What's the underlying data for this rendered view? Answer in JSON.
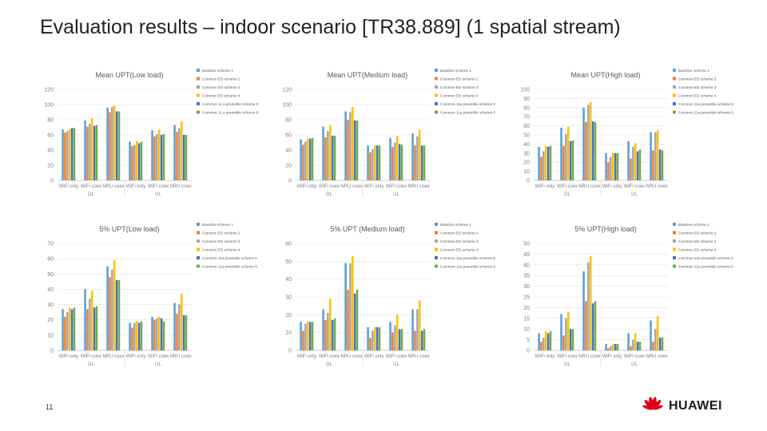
{
  "page": {
    "title": "Evaluation results – indoor scenario [TR38.889] (1 spatial stream)",
    "page_number": "11",
    "logo_text": "HUAWEI"
  },
  "colors": {
    "series": [
      "#5b9bd5",
      "#ed7d31",
      "#a5a5a5",
      "#ffc000",
      "#4472c4",
      "#70ad47"
    ]
  },
  "chart_data": [
    {
      "type": "bar",
      "title": "Mean UPT(Low load)",
      "categories": [
        "WiFi only",
        "WiFi coex",
        "NRU coex",
        "WiFi only",
        "WiFi coex",
        "NRU coex"
      ],
      "groups": [
        {
          "label": "DL",
          "span": [
            0,
            2
          ]
        },
        {
          "label": "UL",
          "span": [
            3,
            5
          ]
        }
      ],
      "legend": [
        "Baseline scheme 1",
        "Common ED scheme 2",
        "Common ED scheme 3",
        "Common ED scheme 4",
        "Common 11 a preamble scheme 5",
        "Common 11 a preamble scheme 6"
      ],
      "ylim": [
        0,
        120
      ],
      "yticks": [
        0,
        20,
        40,
        60,
        80,
        100,
        120
      ],
      "series": [
        {
          "values": [
            67,
            79,
            96,
            51,
            66,
            73
          ]
        },
        {
          "values": [
            63,
            71,
            90,
            45,
            58,
            64
          ]
        },
        {
          "values": [
            65,
            75,
            97,
            47,
            61,
            69
          ]
        },
        {
          "values": [
            68,
            82,
            99,
            52,
            67,
            78
          ]
        },
        {
          "values": [
            69,
            72,
            91,
            49,
            60,
            60
          ]
        },
        {
          "values": [
            69,
            73,
            91,
            51,
            61,
            60
          ]
        }
      ]
    },
    {
      "type": "bar",
      "title": "Mean UPT(Medium load)",
      "categories": [
        "WiFi only",
        "WiFi coex",
        "NRU coex",
        "WiFi only",
        "WiFi coex",
        "NRU coex"
      ],
      "groups": [
        {
          "label": "DL",
          "span": [
            0,
            2
          ]
        },
        {
          "label": "UL",
          "span": [
            3,
            5
          ]
        }
      ],
      "legend": [
        "Baseline scheme 1",
        "Common ED scheme 2",
        "Common ED scheme 3",
        "Common ED scheme 4",
        "Common 11a preamble scheme 5",
        "Common 11a preamble scheme 6"
      ],
      "ylim": [
        0,
        120
      ],
      "yticks": [
        0,
        20,
        40,
        60,
        80,
        100,
        120
      ],
      "series": [
        {
          "values": [
            54,
            71,
            91,
            46,
            56,
            62
          ]
        },
        {
          "values": [
            47,
            57,
            80,
            37,
            44,
            46
          ]
        },
        {
          "values": [
            51,
            65,
            90,
            41,
            50,
            58
          ]
        },
        {
          "values": [
            55,
            73,
            97,
            46,
            59,
            67
          ]
        },
        {
          "values": [
            55,
            59,
            79,
            46,
            48,
            46
          ]
        },
        {
          "values": [
            56,
            59,
            79,
            46,
            47,
            46
          ]
        }
      ]
    },
    {
      "type": "bar",
      "title": "Mean UPT(High load)",
      "categories": [
        "WiFi only",
        "WiFi coex",
        "NRU coex",
        "WiFi only",
        "WiFi coex",
        "NRU coex"
      ],
      "groups": [
        {
          "label": "DL",
          "span": [
            0,
            2
          ]
        },
        {
          "label": "UL",
          "span": [
            3,
            5
          ]
        }
      ],
      "legend": [
        "Baseline scheme 1",
        "Common ED scheme 2",
        "Common ED scheme 3",
        "Common ED scheme 4",
        "Common 11a preamble scheme 5",
        "Common 11a preamble scheme 6"
      ],
      "ylim": [
        0,
        100
      ],
      "yticks": [
        0,
        10,
        20,
        30,
        40,
        50,
        60,
        70,
        80,
        90,
        100
      ],
      "series": [
        {
          "values": [
            37,
            58,
            80,
            30,
            43,
            53
          ]
        },
        {
          "values": [
            26,
            38,
            64,
            20,
            24,
            33
          ]
        },
        {
          "values": [
            32,
            51,
            83,
            26,
            37,
            53
          ]
        },
        {
          "values": [
            38,
            59,
            86,
            30,
            41,
            55
          ]
        },
        {
          "values": [
            37,
            43,
            65,
            30,
            32,
            34
          ]
        },
        {
          "values": [
            38,
            44,
            64,
            30,
            34,
            33
          ]
        }
      ]
    },
    {
      "type": "bar",
      "title": "5% UPT(Low load)",
      "categories": [
        "WiFi only",
        "WiFi coex",
        "NRU coex",
        "WiFi only",
        "WiFi coex",
        "NRU coex"
      ],
      "groups": [
        {
          "label": "DL",
          "span": [
            0,
            2
          ]
        },
        {
          "label": "UL",
          "span": [
            3,
            5
          ]
        }
      ],
      "legend": [
        "Baseline scheme 1",
        "Common ED scheme 2",
        "Common ED scheme 3",
        "Common ED scheme 4",
        "Common 11a preamble scheme 5",
        "Common 11a preamble scheme 6"
      ],
      "ylim": [
        0,
        70
      ],
      "yticks": [
        0,
        10,
        20,
        30,
        40,
        50,
        60,
        70
      ],
      "series": [
        {
          "values": [
            27,
            40,
            55,
            18,
            22,
            31
          ]
        },
        {
          "values": [
            22,
            27,
            48,
            15,
            20,
            24
          ]
        },
        {
          "values": [
            25,
            34,
            53,
            18,
            21,
            30
          ]
        },
        {
          "values": [
            28,
            39,
            59,
            19,
            22,
            37
          ]
        },
        {
          "values": [
            27,
            28,
            46,
            18,
            21,
            23
          ]
        },
        {
          "values": [
            28,
            29,
            46,
            19,
            19,
            23
          ]
        }
      ]
    },
    {
      "type": "bar",
      "title": "5% UPT (Medium load)",
      "categories": [
        "WiFi only",
        "WiFi coex",
        "NRU coex",
        "WiFi only",
        "WiFi coex",
        "NRU coex"
      ],
      "groups": [
        {
          "label": "DL",
          "span": [
            0,
            2
          ]
        },
        {
          "label": "UL",
          "span": [
            3,
            5
          ]
        }
      ],
      "legend": [
        "Baseline scheme 1",
        "Common ED scheme 2",
        "Common ED scheme 3",
        "Common ED scheme 4",
        "Common 11a preamble scheme 5",
        "Common 11a preamble scheme 6"
      ],
      "ylim": [
        0,
        60
      ],
      "yticks": [
        0,
        10,
        20,
        30,
        40,
        50,
        60
      ],
      "series": [
        {
          "values": [
            16,
            23,
            49,
            13,
            16,
            23
          ]
        },
        {
          "values": [
            11,
            17,
            34,
            7,
            10,
            11
          ]
        },
        {
          "values": [
            15,
            21,
            49,
            11,
            14,
            23
          ]
        },
        {
          "values": [
            16,
            29,
            53,
            13,
            20,
            28
          ]
        },
        {
          "values": [
            16,
            17,
            32,
            13,
            12,
            11
          ]
        },
        {
          "values": [
            16,
            18,
            34,
            13,
            12,
            12
          ]
        }
      ]
    },
    {
      "type": "bar",
      "title": "5% UPT(High load)",
      "categories": [
        "WiFi only",
        "WiFi coex",
        "NRU coex",
        "WiFi only",
        "WiFi coex",
        "NRU coex"
      ],
      "groups": [
        {
          "label": "DL",
          "span": [
            0,
            2
          ]
        },
        {
          "label": "UL",
          "span": [
            3,
            5
          ]
        }
      ],
      "legend": [
        "Baseline scheme 1",
        "Common ED scheme 2",
        "Common ED scheme 3",
        "Common ED scheme 4",
        "Common 11a preamble scheme 5",
        "Common 11a preamble scheme 6"
      ],
      "ylim": [
        0,
        50
      ],
      "yticks": [
        0,
        5,
        10,
        15,
        20,
        25,
        30,
        35,
        40,
        45,
        50
      ],
      "series": [
        {
          "values": [
            8,
            17,
            37,
            3,
            8,
            14
          ]
        },
        {
          "values": [
            4,
            7,
            23,
            1,
            2,
            4
          ]
        },
        {
          "values": [
            6,
            15,
            41,
            2,
            5,
            10
          ]
        },
        {
          "values": [
            9,
            18,
            44,
            3,
            8,
            16
          ]
        },
        {
          "values": [
            8,
            10,
            22,
            3,
            4,
            6
          ]
        },
        {
          "values": [
            9,
            10,
            23,
            3,
            4,
            6
          ]
        }
      ]
    }
  ]
}
